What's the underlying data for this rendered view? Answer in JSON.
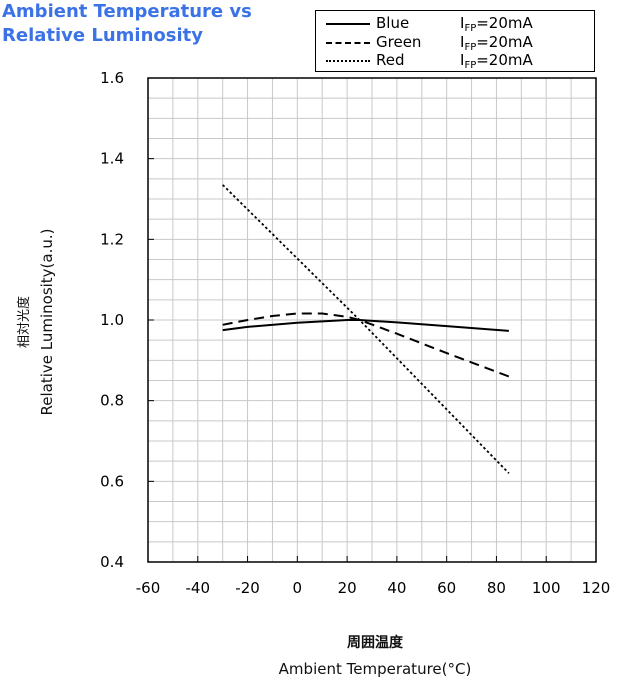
{
  "title_lines": [
    "Ambient Temperature vs",
    "Relative Luminosity"
  ],
  "ylabel_cjk": "相対光度",
  "ylabel": "Relative Luminosity(a.u.)",
  "xlabel_cjk": "周囲温度",
  "xlabel": "Ambient Temperature(°C)",
  "colors": {
    "title": "#3b73e6",
    "series": "#000000",
    "grid": "#c8c8c8"
  },
  "legend": [
    {
      "name": "Blue",
      "style": "solid",
      "cond_prefix": "I",
      "cond_sub": "FP",
      "cond_suffix": "=20mA"
    },
    {
      "name": "Green",
      "style": "dashed",
      "cond_prefix": "I",
      "cond_sub": "FP",
      "cond_suffix": "=20mA"
    },
    {
      "name": "Red",
      "style": "dotted",
      "cond_prefix": "I",
      "cond_sub": "FP",
      "cond_suffix": "=20mA"
    }
  ],
  "chart_data": {
    "type": "line",
    "title": "Ambient Temperature vs Relative Luminosity",
    "xlabel": "Ambient Temperature(°C)",
    "ylabel": "Relative Luminosity(a.u.)",
    "xlim": [
      -60,
      120
    ],
    "ylim": [
      0.4,
      1.6
    ],
    "xticks": [
      -60,
      -40,
      -20,
      0,
      20,
      40,
      60,
      80,
      100,
      120
    ],
    "xtick_labels": [
      "-60",
      "-40",
      "-20",
      "0",
      "20",
      "40",
      "60",
      "80",
      "100",
      "120"
    ],
    "yticks": [
      0.4,
      0.6,
      0.8,
      1.0,
      1.2,
      1.4,
      1.6
    ],
    "ytick_labels": [
      "0.4",
      "0.6",
      "0.8",
      "1.0",
      "1.2",
      "1.4",
      "1.6"
    ],
    "grid": true,
    "legend_position": "top-right",
    "series": [
      {
        "name": "Blue",
        "style": "solid",
        "x": [
          -30,
          -20,
          0,
          20,
          25,
          40,
          60,
          85
        ],
        "y": [
          0.975,
          0.983,
          0.993,
          1.0,
          1.0,
          0.994,
          0.985,
          0.973
        ]
      },
      {
        "name": "Green",
        "style": "dashed",
        "x": [
          -30,
          -20,
          -10,
          0,
          10,
          20,
          25,
          40,
          60,
          85
        ],
        "y": [
          0.988,
          1.0,
          1.01,
          1.016,
          1.016,
          1.008,
          1.0,
          0.966,
          0.918,
          0.86
        ]
      },
      {
        "name": "Red",
        "style": "dotted",
        "x": [
          -30,
          25,
          85
        ],
        "y": [
          1.335,
          1.0,
          0.62
        ]
      }
    ]
  }
}
